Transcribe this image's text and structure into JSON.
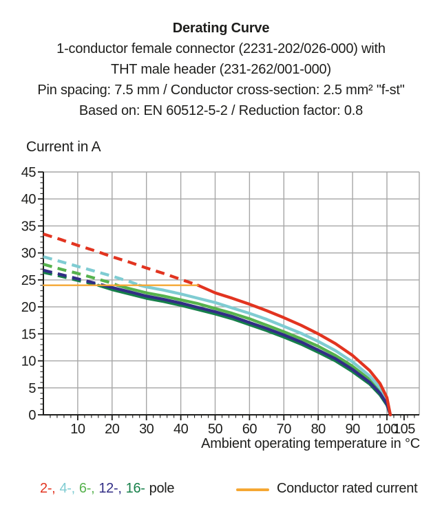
{
  "header": {
    "title": "Derating Curve",
    "lines": [
      "1-conductor female connector (2231-202/026-000) with",
      "THT male header (231-262/001-000)",
      "Pin spacing: 7.5 mm / Conductor cross-section: 2.5 mm² \"f-st\"",
      "Based on: EN 60512-5-2 / Reduction factor: 0.8"
    ]
  },
  "chart_data": {
    "type": "line",
    "title": "Derating Curve",
    "xlabel": "Ambient operating temperature in °C",
    "ylabel": "Current in A",
    "xlim": [
      0,
      109
    ],
    "ylim": [
      0,
      45
    ],
    "x_ticks": [
      10,
      20,
      30,
      40,
      50,
      60,
      70,
      80,
      90,
      100,
      105
    ],
    "y_ticks": [
      0,
      5,
      10,
      15,
      20,
      25,
      30,
      35,
      40,
      45
    ],
    "grid": "on",
    "legend_position": "bottom",
    "note": "curves are dashed above the conductor rated current (24 A) and solid below it",
    "rated_current": {
      "label": "Conductor rated current",
      "value": 24,
      "x_start": 0,
      "x_end": 45,
      "color": "#f5a733"
    },
    "series": [
      {
        "name": "2-pole",
        "color": "#e23420",
        "dash_until_x": 45,
        "points": [
          [
            0,
            33.5
          ],
          [
            5,
            32.5
          ],
          [
            10,
            31.4
          ],
          [
            15,
            30.4
          ],
          [
            20,
            29.3
          ],
          [
            25,
            28.3
          ],
          [
            30,
            27.2
          ],
          [
            35,
            26.2
          ],
          [
            40,
            25.1
          ],
          [
            45,
            24
          ],
          [
            50,
            22.6
          ],
          [
            55,
            21.6
          ],
          [
            60,
            20.5
          ],
          [
            65,
            19.3
          ],
          [
            70,
            18
          ],
          [
            75,
            16.6
          ],
          [
            80,
            15
          ],
          [
            85,
            13.2
          ],
          [
            90,
            11
          ],
          [
            95,
            8.2
          ],
          [
            98,
            5.8
          ],
          [
            100,
            3.2
          ],
          [
            101,
            0
          ]
        ]
      },
      {
        "name": "4-pole",
        "color": "#7fccd2",
        "dash_until_x": 28,
        "points": [
          [
            0,
            29.3
          ],
          [
            5,
            28.4
          ],
          [
            10,
            27.5
          ],
          [
            15,
            26.6
          ],
          [
            20,
            25.7
          ],
          [
            25,
            24.7
          ],
          [
            28,
            24
          ],
          [
            30,
            23.7
          ],
          [
            35,
            23.1
          ],
          [
            40,
            22.4
          ],
          [
            45,
            21.6
          ],
          [
            50,
            20.8
          ],
          [
            55,
            19.8
          ],
          [
            60,
            18.8
          ],
          [
            65,
            17.7
          ],
          [
            70,
            16.4
          ],
          [
            75,
            15.1
          ],
          [
            80,
            13.6
          ],
          [
            85,
            11.9
          ],
          [
            90,
            9.8
          ],
          [
            95,
            7.2
          ],
          [
            98,
            5
          ],
          [
            100,
            2.8
          ],
          [
            101,
            0
          ]
        ]
      },
      {
        "name": "6-pole",
        "color": "#56b24d",
        "dash_until_x": 21.5,
        "points": [
          [
            0,
            27.9
          ],
          [
            5,
            27
          ],
          [
            10,
            26.2
          ],
          [
            15,
            25.3
          ],
          [
            20,
            24.4
          ],
          [
            21.5,
            24
          ],
          [
            25,
            23.4
          ],
          [
            30,
            22.6
          ],
          [
            35,
            22
          ],
          [
            40,
            21.3
          ],
          [
            45,
            20.6
          ],
          [
            50,
            19.7
          ],
          [
            55,
            18.8
          ],
          [
            60,
            17.8
          ],
          [
            65,
            16.6
          ],
          [
            70,
            15.4
          ],
          [
            75,
            14.1
          ],
          [
            80,
            12.7
          ],
          [
            85,
            11
          ],
          [
            90,
            9
          ],
          [
            95,
            6.5
          ],
          [
            98,
            4.4
          ],
          [
            100,
            2.4
          ],
          [
            101,
            0
          ]
        ]
      },
      {
        "name": "12-pole",
        "color": "#312d85",
        "dash_until_x": 17.5,
        "points": [
          [
            0,
            26.8
          ],
          [
            5,
            26
          ],
          [
            10,
            25.2
          ],
          [
            15,
            24.4
          ],
          [
            17.5,
            24
          ],
          [
            20,
            23.6
          ],
          [
            25,
            22.8
          ],
          [
            30,
            22
          ],
          [
            35,
            21.4
          ],
          [
            40,
            20.7
          ],
          [
            45,
            19.9
          ],
          [
            50,
            19.1
          ],
          [
            55,
            18.2
          ],
          [
            60,
            17.1
          ],
          [
            65,
            16
          ],
          [
            70,
            14.8
          ],
          [
            75,
            13.5
          ],
          [
            80,
            12
          ],
          [
            85,
            10.4
          ],
          [
            90,
            8.4
          ],
          [
            95,
            6
          ],
          [
            98,
            4
          ],
          [
            100,
            2
          ],
          [
            101,
            0
          ]
        ]
      },
      {
        "name": "16-pole",
        "color": "#17804a",
        "dash_until_x": 16,
        "points": [
          [
            0,
            26.4
          ],
          [
            5,
            25.7
          ],
          [
            10,
            24.9
          ],
          [
            15,
            24.2
          ],
          [
            16,
            24
          ],
          [
            20,
            23.2
          ],
          [
            25,
            22.4
          ],
          [
            30,
            21.6
          ],
          [
            35,
            21
          ],
          [
            40,
            20.3
          ],
          [
            45,
            19.5
          ],
          [
            50,
            18.7
          ],
          [
            55,
            17.8
          ],
          [
            60,
            16.7
          ],
          [
            65,
            15.6
          ],
          [
            70,
            14.4
          ],
          [
            75,
            13.1
          ],
          [
            80,
            11.6
          ],
          [
            85,
            10
          ],
          [
            90,
            8
          ],
          [
            95,
            5.7
          ],
          [
            98,
            3.7
          ],
          [
            100,
            1.8
          ],
          [
            101,
            0
          ]
        ]
      }
    ]
  },
  "legend": {
    "pole_items": [
      {
        "label": "2-,",
        "color": "#e23420"
      },
      {
        "label": "4-,",
        "color": "#7fccd2"
      },
      {
        "label": "6-,",
        "color": "#56b24d"
      },
      {
        "label": "12-,",
        "color": "#312d85"
      },
      {
        "label": "16-",
        "color": "#17804a"
      }
    ],
    "pole_suffix": "pole",
    "rated_label": "Conductor rated current",
    "rated_color": "#f5a733"
  },
  "style": {
    "grid_color": "#a6a6a6",
    "axis_color": "#1d1d1b",
    "text_color": "#1d1d1b"
  }
}
